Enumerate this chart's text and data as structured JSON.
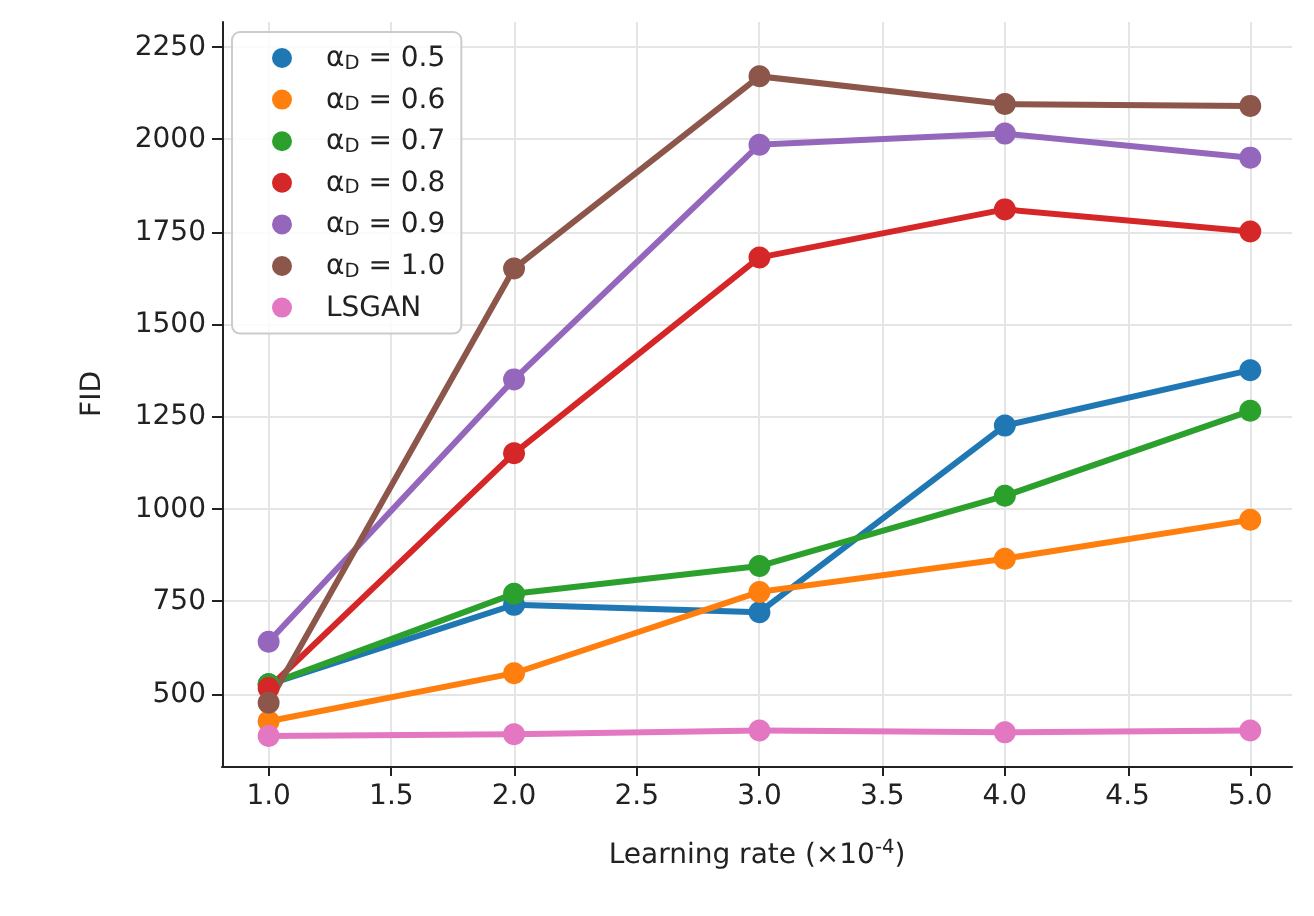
{
  "chart_data": {
    "type": "line",
    "xlabel": "Learning rate (×10$^{-4}$)",
    "ylabel": "FID",
    "x": [
      1,
      2,
      3,
      4,
      5
    ],
    "series": [
      {
        "name": "α$_{D}$ = 0.5",
        "color": "#1f77b4",
        "values": [
          525,
          740,
          720,
          1225,
          1375
        ]
      },
      {
        "name": "α$_{D}$ = 0.6",
        "color": "#ff7f0e",
        "values": [
          425,
          555,
          775,
          865,
          970
        ]
      },
      {
        "name": "α$_{D}$ = 0.7",
        "color": "#2ca02c",
        "values": [
          525,
          770,
          845,
          1035,
          1265
        ]
      },
      {
        "name": "α$_{D}$ = 0.8",
        "color": "#d62728",
        "values": [
          515,
          1150,
          1680,
          1810,
          1750
        ]
      },
      {
        "name": "α$_{D}$ = 0.9",
        "color": "#9467bd",
        "values": [
          640,
          1350,
          1985,
          2015,
          1950
        ]
      },
      {
        "name": "α$_{D}$ = 1.0",
        "color": "#8c564b",
        "values": [
          475,
          1650,
          2170,
          2095,
          2090
        ]
      },
      {
        "name": "LSGAN",
        "color": "#e377c2",
        "values": [
          385,
          390,
          400,
          395,
          400
        ]
      }
    ],
    "xlim": [
      0.81,
      5.17
    ],
    "ylim": [
      304,
      2317
    ],
    "xticks": [
      {
        "value": 1,
        "label": "1.0"
      },
      {
        "value": 1.5,
        "label": "1.5"
      },
      {
        "value": 2,
        "label": "2.0"
      },
      {
        "value": 2.5,
        "label": "2.5"
      },
      {
        "value": 3,
        "label": "3.0"
      },
      {
        "value": 3.5,
        "label": "3.5"
      },
      {
        "value": 4,
        "label": "4.0"
      },
      {
        "value": 4.5,
        "label": "4.5"
      },
      {
        "value": 5,
        "label": "5.0"
      }
    ],
    "yticks": [
      500,
      750,
      1000,
      1250,
      1500,
      1750,
      2000,
      2250
    ],
    "grid": true,
    "legend": "top left",
    "marker": "circle",
    "line_style": "solid"
  }
}
